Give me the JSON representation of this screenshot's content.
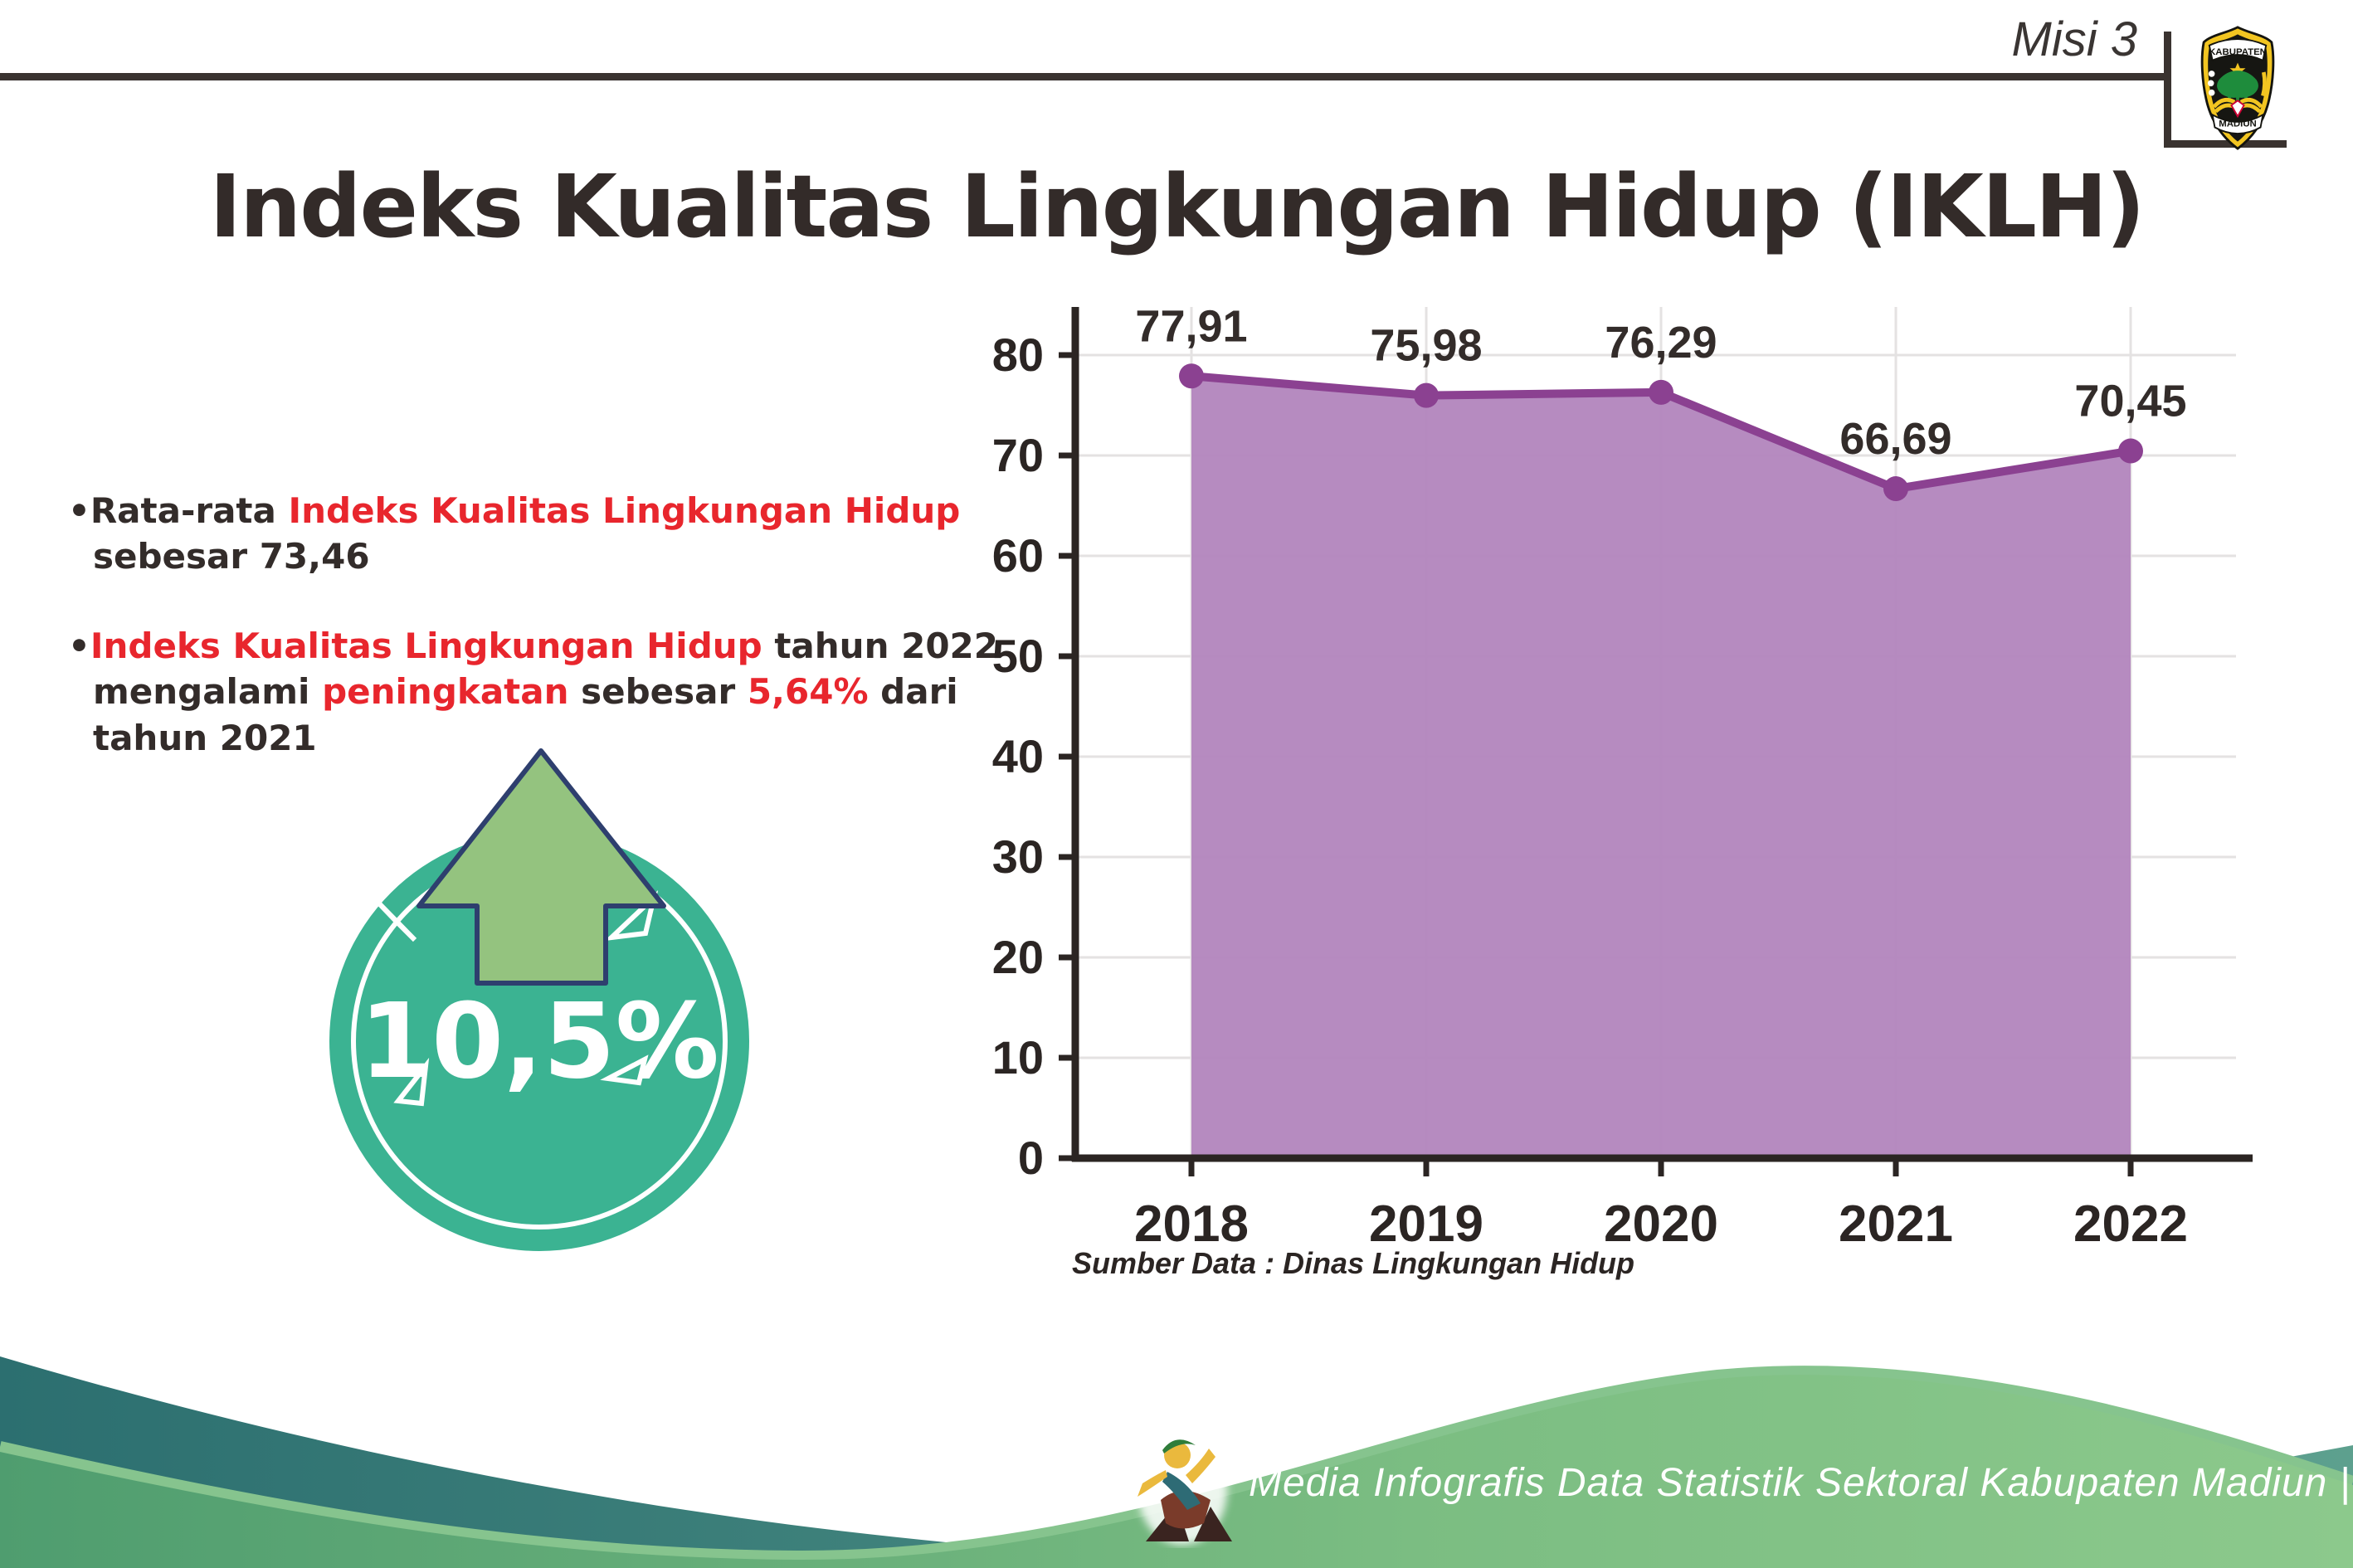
{
  "header": {
    "misi_label": "Misi 3",
    "title": "Indeks Kualitas Lingkungan Hidup (IKLH)",
    "logo": {
      "top_text": "KABUPATEN",
      "bottom_text": "MADIUN"
    }
  },
  "bullets": [
    {
      "segments": [
        {
          "t": "•Rata-rata ",
          "c": "dark"
        },
        {
          "t": "Indeks Kualitas Lingkungan Hidup",
          "c": "red"
        },
        {
          "t": " sebesar 73,46",
          "c": "dark"
        }
      ]
    },
    {
      "segments": [
        {
          "t": "•",
          "c": "dark"
        },
        {
          "t": "Indeks Kualitas Lingkungan Hidup",
          "c": "red"
        },
        {
          "t": " tahun 2022 mengalami ",
          "c": "dark"
        },
        {
          "t": "peningkatan",
          "c": "red"
        },
        {
          "t": " sebesar ",
          "c": "dark"
        },
        {
          "t": "5,64%",
          "c": "red"
        },
        {
          "t": " dari tahun 2021",
          "c": "dark"
        }
      ]
    }
  ],
  "badge": {
    "value": "10,5%"
  },
  "chart_data": {
    "type": "area",
    "x": [
      "2018",
      "2019",
      "2020",
      "2021",
      "2022"
    ],
    "series": [
      {
        "name": "IKLH",
        "values": [
          77.91,
          75.98,
          76.29,
          66.69,
          70.45
        ]
      }
    ],
    "point_labels": [
      "77,91",
      "75,98",
      "76,29",
      "66,69",
      "70,45"
    ],
    "title": "",
    "xlabel": "",
    "ylabel": "",
    "ylim": [
      0,
      85
    ],
    "yticks": [
      0,
      10,
      20,
      30,
      40,
      50,
      60,
      70,
      80
    ],
    "grid": true,
    "legend": "none",
    "line_color": "#8b4191",
    "fill_color": "#b285bd",
    "axis_color": "#2b2523",
    "grid_color": "#e4e2e2",
    "label_color": "#332c2a"
  },
  "source_note": "Sumber Data : Dinas Lingkungan Hidup",
  "footer": {
    "text": "Media Infografis Data Statistik Sektoral Kabupaten Madiun |"
  },
  "colors": {
    "accent_red": "#e8262d",
    "text_dark": "#332c2a",
    "badge_teal": "#3bb392",
    "arrow_green": "#94c37f",
    "arrow_outline": "#2e3f6e",
    "footer_teal_dark": "#2c6f70",
    "footer_teal_light": "#5da08e",
    "footer_green_dark": "#4f9d6f",
    "footer_green_light": "#8cc98c"
  }
}
